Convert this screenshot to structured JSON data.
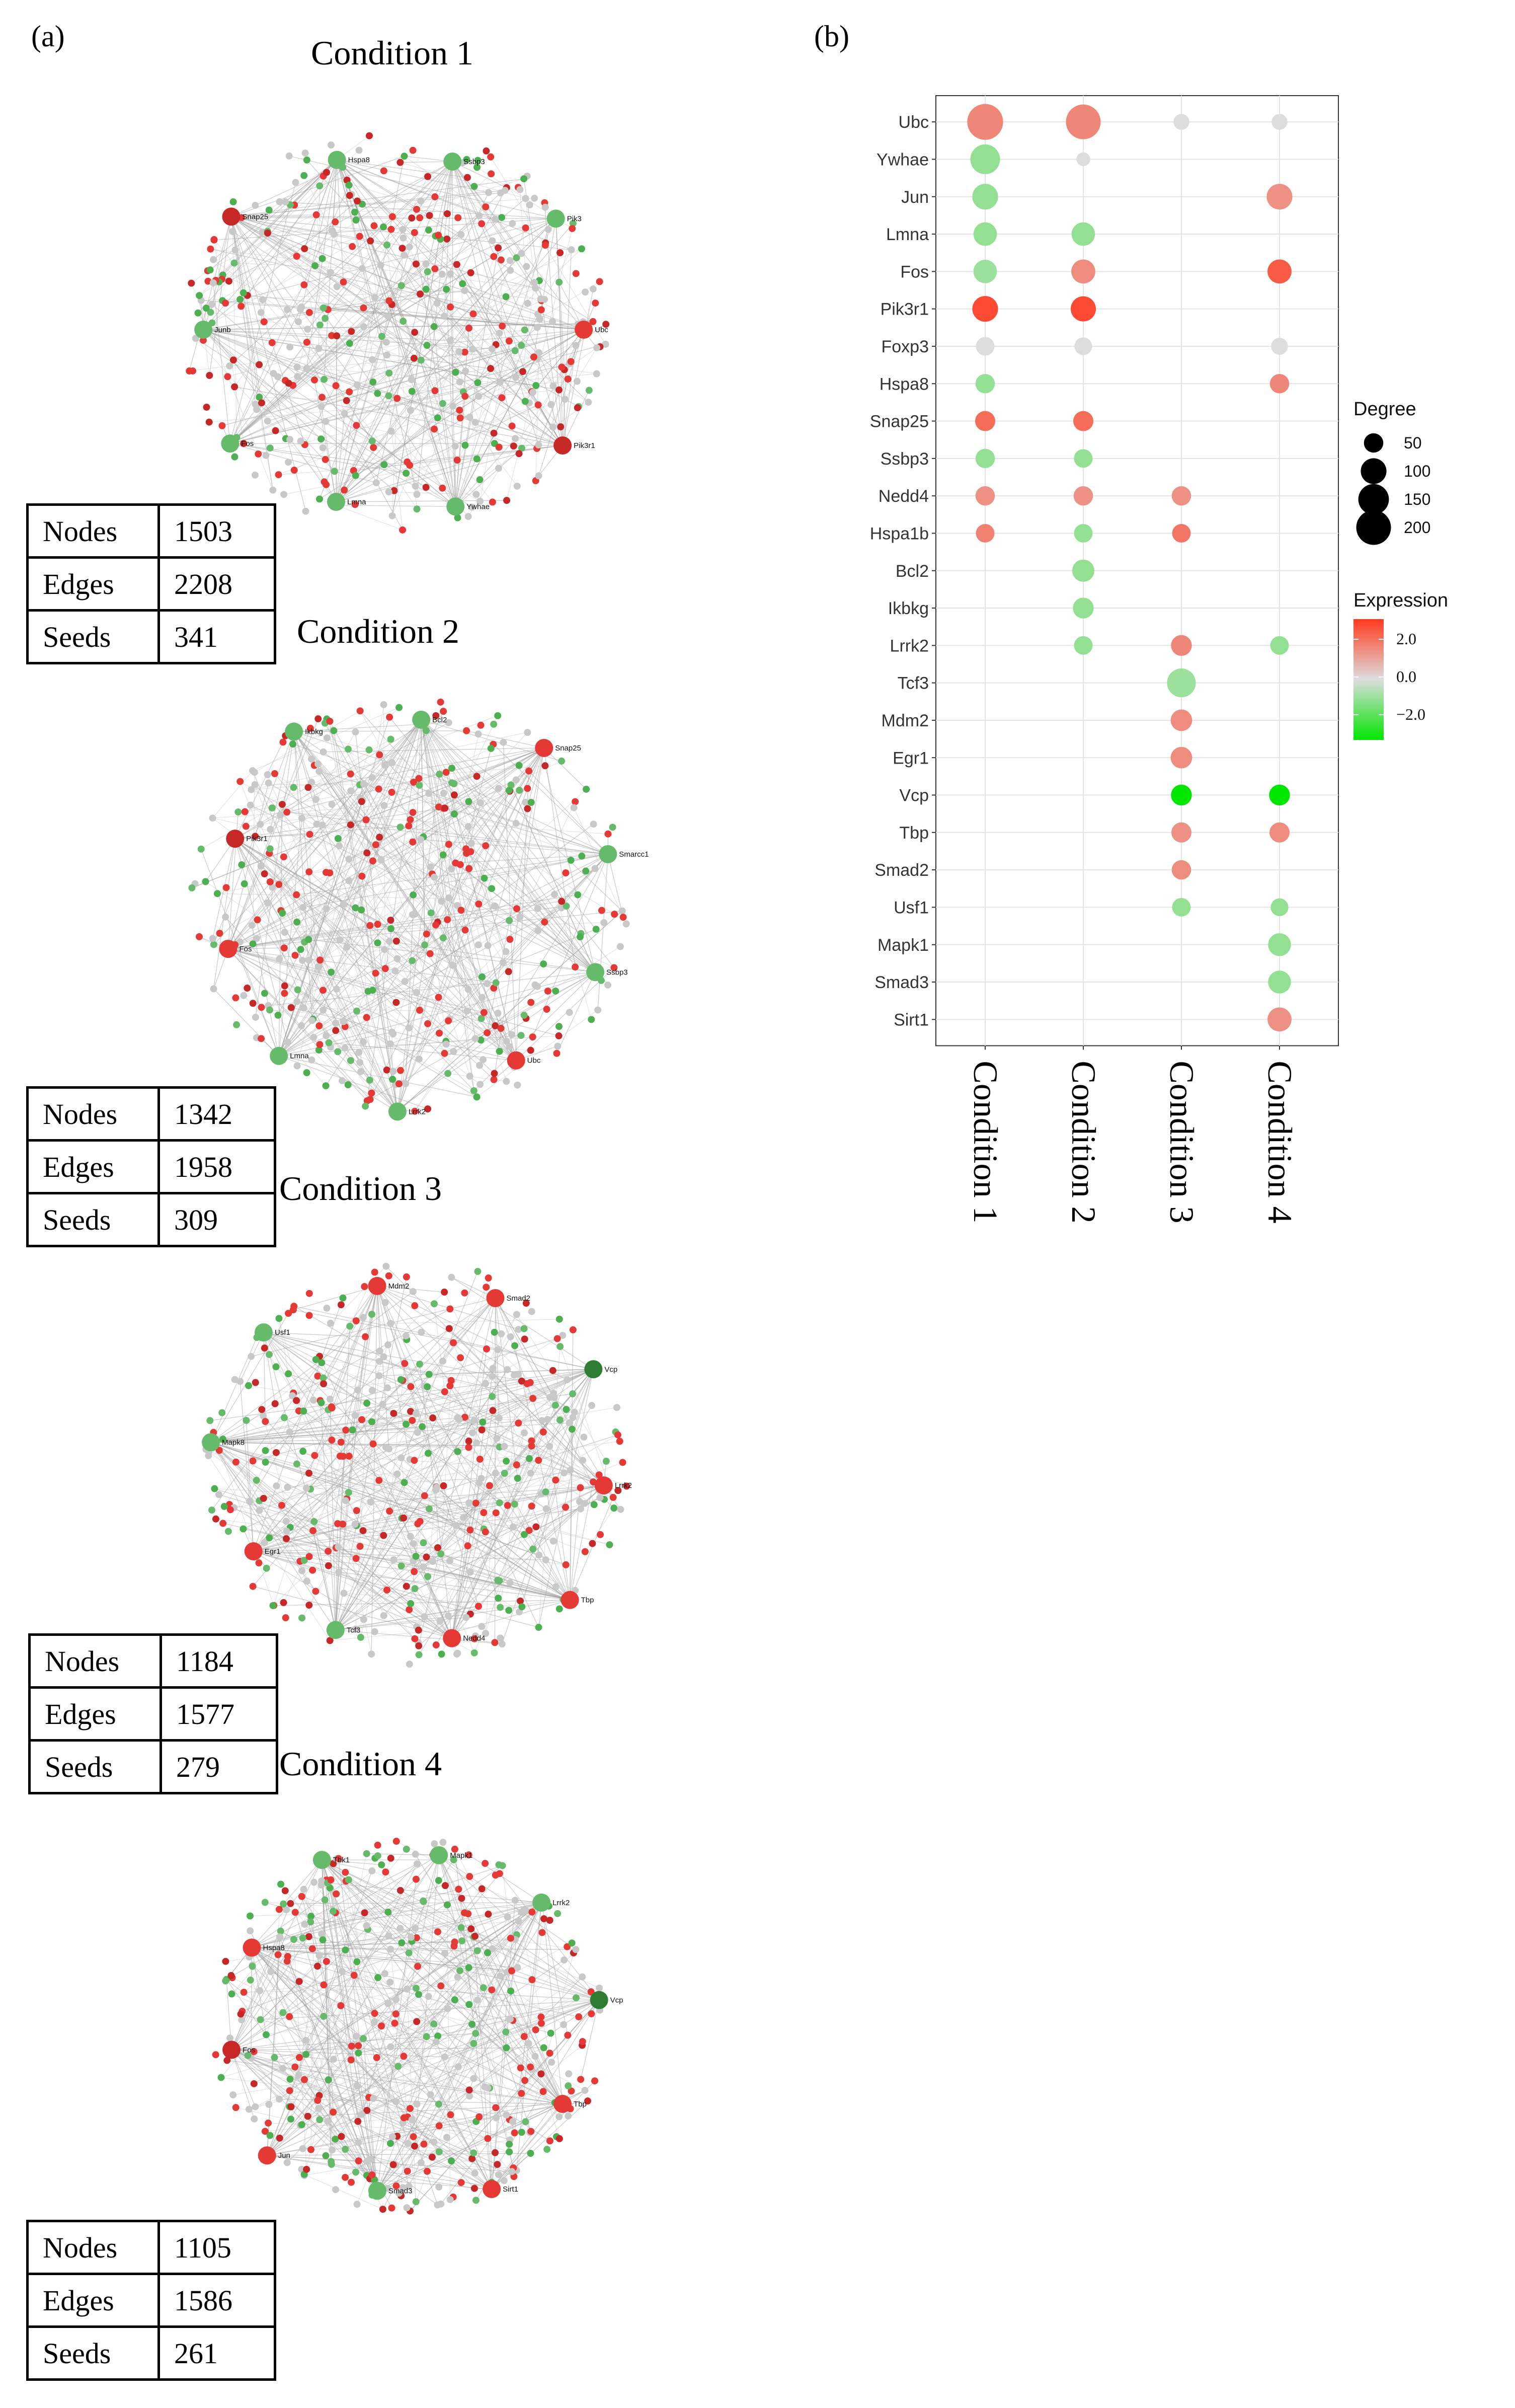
{
  "panel_a_label": "(a)",
  "panel_b_label": "(b)",
  "networks": [
    {
      "title": "Condition 1",
      "stats": [
        {
          "key": "Nodes",
          "value": "1503"
        },
        {
          "key": "Edges",
          "value": "2208"
        },
        {
          "key": "Seeds",
          "value": "341"
        }
      ],
      "hubs": [
        {
          "label": "Ubc",
          "color": "#e53935"
        },
        {
          "label": "Pik3r1",
          "color": "#c62828"
        },
        {
          "label": "Ywhae",
          "color": "#66bb6a"
        },
        {
          "label": "Lmna",
          "color": "#66bb6a"
        },
        {
          "label": "Fos",
          "color": "#66bb6a"
        },
        {
          "label": "Junb",
          "color": "#66bb6a"
        },
        {
          "label": "Snap25",
          "color": "#c62828"
        },
        {
          "label": "Hspa8",
          "color": "#66bb6a"
        },
        {
          "label": "Ssbp3",
          "color": "#66bb6a"
        },
        {
          "label": "Pik3",
          "color": "#66bb6a"
        }
      ]
    },
    {
      "title": "Condition 2",
      "stats": [
        {
          "key": "Nodes",
          "value": "1342"
        },
        {
          "key": "Edges",
          "value": "1958"
        },
        {
          "key": "Seeds",
          "value": "309"
        }
      ],
      "hubs": [
        {
          "label": "Ubc",
          "color": "#e53935"
        },
        {
          "label": "Lrrk2",
          "color": "#66bb6a"
        },
        {
          "label": "Lmna",
          "color": "#66bb6a"
        },
        {
          "label": "Fos",
          "color": "#e53935"
        },
        {
          "label": "Pik3r1",
          "color": "#c62828"
        },
        {
          "label": "Ikbkg",
          "color": "#66bb6a"
        },
        {
          "label": "Bcl2",
          "color": "#66bb6a"
        },
        {
          "label": "Snap25",
          "color": "#e53935"
        },
        {
          "label": "Smarcc1",
          "color": "#66bb6a"
        },
        {
          "label": "Ssbp3",
          "color": "#66bb6a"
        }
      ]
    },
    {
      "title": "Condition 3",
      "stats": [
        {
          "key": "Nodes",
          "value": "1184"
        },
        {
          "key": "Edges",
          "value": "1577"
        },
        {
          "key": "Seeds",
          "value": "279"
        }
      ],
      "hubs": [
        {
          "label": "Tcf3",
          "color": "#66bb6a"
        },
        {
          "label": "Egr1",
          "color": "#e53935"
        },
        {
          "label": "Mapk8",
          "color": "#66bb6a"
        },
        {
          "label": "Usf1",
          "color": "#66bb6a"
        },
        {
          "label": "Mdm2",
          "color": "#e53935"
        },
        {
          "label": "Smad2",
          "color": "#e53935"
        },
        {
          "label": "Vcp",
          "color": "#2e7d32"
        },
        {
          "label": "Lrrk2",
          "color": "#e53935"
        },
        {
          "label": "Tbp",
          "color": "#e53935"
        },
        {
          "label": "Nedd4",
          "color": "#e53935"
        }
      ]
    },
    {
      "title": "Condition 4",
      "stats": [
        {
          "key": "Nodes",
          "value": "1105"
        },
        {
          "key": "Edges",
          "value": "1586"
        },
        {
          "key": "Seeds",
          "value": "261"
        }
      ],
      "hubs": [
        {
          "label": "Fos",
          "color": "#c62828"
        },
        {
          "label": "Hspa8",
          "color": "#e53935"
        },
        {
          "label": "Tbk1",
          "color": "#66bb6a"
        },
        {
          "label": "Mapk1",
          "color": "#66bb6a"
        },
        {
          "label": "Lrrk2",
          "color": "#66bb6a"
        },
        {
          "label": "Vcp",
          "color": "#2e7d32"
        },
        {
          "label": "Tbp",
          "color": "#e53935"
        },
        {
          "label": "Sirt1",
          "color": "#e53935"
        },
        {
          "label": "Smad3",
          "color": "#66bb6a"
        },
        {
          "label": "Jun",
          "color": "#e53935"
        }
      ]
    }
  ],
  "chart_data": {
    "type": "dot",
    "genes": [
      "Ubc",
      "Ywhae",
      "Jun",
      "Lmna",
      "Fos",
      "Pik3r1",
      "Foxp3",
      "Hspa8",
      "Snap25",
      "Ssbp3",
      "Nedd4",
      "Hspa1b",
      "Bcl2",
      "Ikbkg",
      "Lrrk2",
      "Tcf3",
      "Mdm2",
      "Egr1",
      "Vcp",
      "Tbp",
      "Smad2",
      "Usf1",
      "Mapk1",
      "Smad3",
      "Sirt1"
    ],
    "conditions": [
      "Condition 1",
      "Condition 2",
      "Condition 3",
      "Condition 4"
    ],
    "points": [
      {
        "gene": "Ubc",
        "condition": "Condition 1",
        "degree": 215,
        "expression": 1.6
      },
      {
        "gene": "Ubc",
        "condition": "Condition 2",
        "degree": 200,
        "expression": 1.6
      },
      {
        "gene": "Ubc",
        "condition": "Condition 3",
        "degree": 30,
        "expression": 0.0
      },
      {
        "gene": "Ubc",
        "condition": "Condition 4",
        "degree": 30,
        "expression": 0.0
      },
      {
        "gene": "Ywhae",
        "condition": "Condition 1",
        "degree": 140,
        "expression": -1.0
      },
      {
        "gene": "Ywhae",
        "condition": "Condition 2",
        "degree": 20,
        "expression": 0.0
      },
      {
        "gene": "Jun",
        "condition": "Condition 1",
        "degree": 100,
        "expression": -1.0
      },
      {
        "gene": "Jun",
        "condition": "Condition 4",
        "degree": 100,
        "expression": 1.4
      },
      {
        "gene": "Lmna",
        "condition": "Condition 1",
        "degree": 80,
        "expression": -1.0
      },
      {
        "gene": "Lmna",
        "condition": "Condition 2",
        "degree": 80,
        "expression": -1.0
      },
      {
        "gene": "Fos",
        "condition": "Condition 1",
        "degree": 80,
        "expression": -0.9
      },
      {
        "gene": "Fos",
        "condition": "Condition 2",
        "degree": 85,
        "expression": 1.5
      },
      {
        "gene": "Fos",
        "condition": "Condition 4",
        "degree": 85,
        "expression": 2.4
      },
      {
        "gene": "Pik3r1",
        "condition": "Condition 1",
        "degree": 100,
        "expression": 2.7
      },
      {
        "gene": "Pik3r1",
        "condition": "Condition 2",
        "degree": 95,
        "expression": 2.7
      },
      {
        "gene": "Foxp3",
        "condition": "Condition 1",
        "degree": 45,
        "expression": 0.0
      },
      {
        "gene": "Foxp3",
        "condition": "Condition 2",
        "degree": 40,
        "expression": 0.0
      },
      {
        "gene": "Foxp3",
        "condition": "Condition 4",
        "degree": 35,
        "expression": 0.0
      },
      {
        "gene": "Hspa8",
        "condition": "Condition 1",
        "degree": 50,
        "expression": -1.0
      },
      {
        "gene": "Hspa8",
        "condition": "Condition 4",
        "degree": 50,
        "expression": 1.6
      },
      {
        "gene": "Snap25",
        "condition": "Condition 1",
        "degree": 55,
        "expression": 2.1
      },
      {
        "gene": "Snap25",
        "condition": "Condition 2",
        "degree": 55,
        "expression": 2.1
      },
      {
        "gene": "Ssbp3",
        "condition": "Condition 1",
        "degree": 50,
        "expression": -1.0
      },
      {
        "gene": "Ssbp3",
        "condition": "Condition 2",
        "degree": 45,
        "expression": -1.0
      },
      {
        "gene": "Nedd4",
        "condition": "Condition 1",
        "degree": 50,
        "expression": 1.4
      },
      {
        "gene": "Nedd4",
        "condition": "Condition 2",
        "degree": 50,
        "expression": 1.4
      },
      {
        "gene": "Nedd4",
        "condition": "Condition 3",
        "degree": 50,
        "expression": 1.4
      },
      {
        "gene": "Hspa1b",
        "condition": "Condition 1",
        "degree": 45,
        "expression": 1.7
      },
      {
        "gene": "Hspa1b",
        "condition": "Condition 2",
        "degree": 45,
        "expression": -1.0
      },
      {
        "gene": "Hspa1b",
        "condition": "Condition 3",
        "degree": 45,
        "expression": 1.9
      },
      {
        "gene": "Bcl2",
        "condition": "Condition 2",
        "degree": 70,
        "expression": -1.0
      },
      {
        "gene": "Ikbkg",
        "condition": "Condition 2",
        "degree": 60,
        "expression": -1.0
      },
      {
        "gene": "Lrrk2",
        "condition": "Condition 2",
        "degree": 45,
        "expression": -1.0
      },
      {
        "gene": "Lrrk2",
        "condition": "Condition 3",
        "degree": 60,
        "expression": 1.6
      },
      {
        "gene": "Lrrk2",
        "condition": "Condition 4",
        "degree": 45,
        "expression": -1.0
      },
      {
        "gene": "Tcf3",
        "condition": "Condition 3",
        "degree": 130,
        "expression": -0.9
      },
      {
        "gene": "Mdm2",
        "condition": "Condition 3",
        "degree": 65,
        "expression": 1.5
      },
      {
        "gene": "Egr1",
        "condition": "Condition 3",
        "degree": 65,
        "expression": 1.5
      },
      {
        "gene": "Vcp",
        "condition": "Condition 3",
        "degree": 60,
        "expression": -3.0
      },
      {
        "gene": "Vcp",
        "condition": "Condition 4",
        "degree": 60,
        "expression": -3.0
      },
      {
        "gene": "Tbp",
        "condition": "Condition 3",
        "degree": 55,
        "expression": 1.4
      },
      {
        "gene": "Tbp",
        "condition": "Condition 4",
        "degree": 55,
        "expression": 1.5
      },
      {
        "gene": "Smad2",
        "condition": "Condition 3",
        "degree": 50,
        "expression": 1.5
      },
      {
        "gene": "Usf1",
        "condition": "Condition 3",
        "degree": 45,
        "expression": -1.0
      },
      {
        "gene": "Usf1",
        "condition": "Condition 4",
        "degree": 40,
        "expression": -1.0
      },
      {
        "gene": "Mapk1",
        "condition": "Condition 4",
        "degree": 75,
        "expression": -1.0
      },
      {
        "gene": "Smad3",
        "condition": "Condition 4",
        "degree": 75,
        "expression": -1.0
      },
      {
        "gene": "Sirt1",
        "condition": "Condition 4",
        "degree": 85,
        "expression": 1.4
      }
    ],
    "legend": {
      "size_title": "Degree",
      "size_values": [
        50,
        100,
        150,
        200
      ],
      "color_title": "Expression",
      "color_ticks": [
        "2.0",
        "0.0",
        "−2.0"
      ],
      "color_low": "#00e600",
      "color_mid": "#dddddd",
      "color_high": "#ff3b1f"
    },
    "degree_range": [
      0,
      220
    ],
    "expression_range": [
      -3,
      3
    ]
  }
}
